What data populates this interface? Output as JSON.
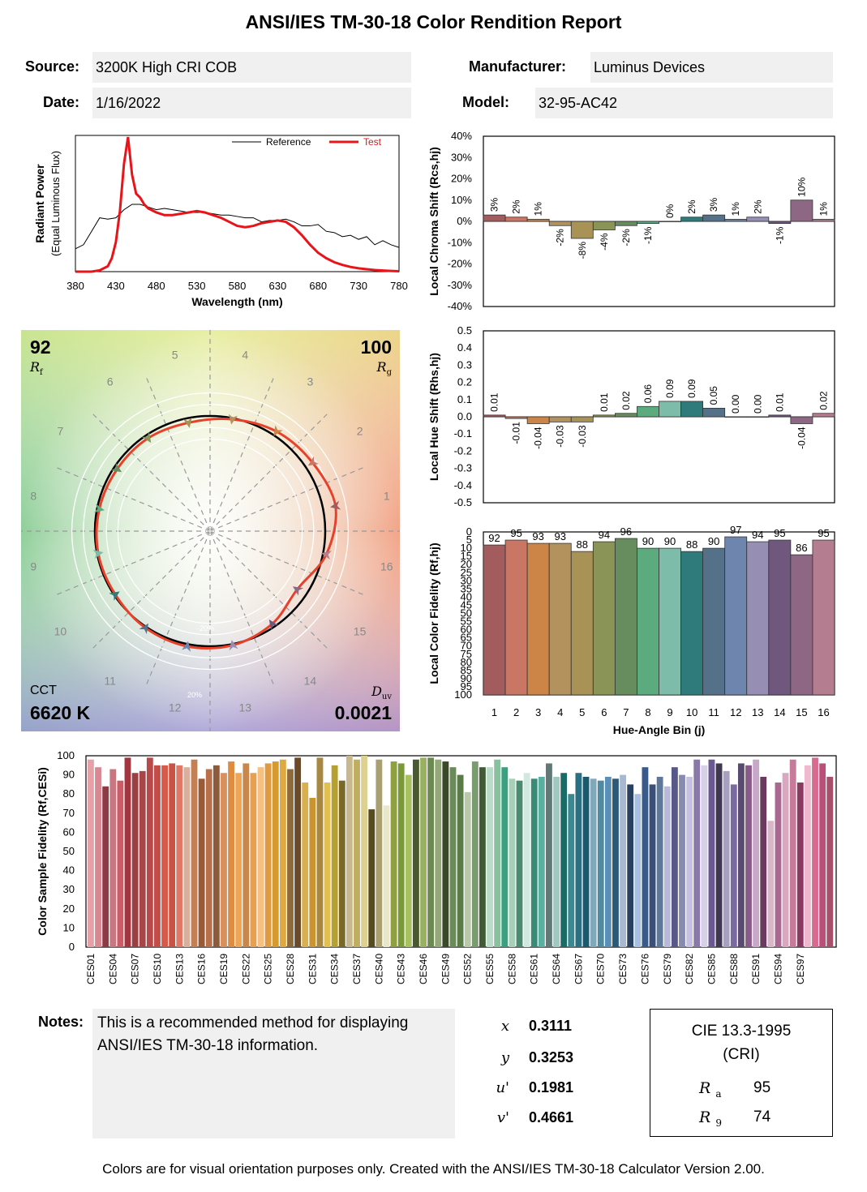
{
  "report": {
    "title": "ANSI/IES TM-30-18 Color Rendition Report",
    "source_label": "Source:",
    "source_value": "3200K High CRI COB",
    "date_label": "Date:",
    "date_value": "1/16/2022",
    "manufacturer_label": "Manufacturer:",
    "manufacturer_value": "Luminus Devices",
    "model_label": "Model:",
    "model_value": "32-95-AC42",
    "notes_label": "Notes:",
    "notes_text": "This is a recommended method for displaying ANSI/IES TM-30-18 information.",
    "footer": "Colors are for visual orientation purposes only. Created with the ANSI/IES TM-30-18 Calculator Version 2.00."
  },
  "chromaticity": {
    "x_label": "x",
    "x_value": "0.3111",
    "y_label": "y",
    "y_value": "0.3253",
    "u_label": "u'",
    "u_value": "0.1981",
    "v_label": "v'",
    "v_value": "0.4661"
  },
  "cri": {
    "title_line1": "CIE 13.3-1995",
    "title_line2": "(CRI)",
    "ra_label": "R",
    "ra_sub": "a",
    "ra_value": "95",
    "r9_label": "R",
    "r9_sub": "9",
    "r9_value": "74"
  },
  "vector_graphic": {
    "rf_value": "92",
    "rf_label": "R",
    "rf_sub": "f",
    "rg_value": "100",
    "rg_label": "R",
    "rg_sub": "g",
    "cct_label": "CCT",
    "cct_value": "6620 K",
    "duv_label": "D",
    "duv_sub": "uv",
    "duv_value": "0.0021",
    "ring_labels": [
      "-20%",
      "20%"
    ],
    "bin_numbers": [
      "1",
      "2",
      "3",
      "4",
      "5",
      "6",
      "7",
      "8",
      "9",
      "10",
      "11",
      "12",
      "13",
      "14",
      "15",
      "16"
    ],
    "test_radii": [
      1.11,
      1.07,
      1.04,
      0.99,
      0.96,
      0.97,
      0.97,
      0.98,
      0.99,
      0.99,
      1.01,
      1.02,
      1.01,
      0.97,
      0.91,
      1.03
    ]
  },
  "colors": {
    "test_line": "#e8412b",
    "bins": [
      "#a35c5e",
      "#c97764",
      "#cc8547",
      "#b3925d",
      "#a89256",
      "#8a9456",
      "#678c5e",
      "#5bab7e",
      "#7cbca8",
      "#2f7a7b",
      "#557089",
      "#6e86ad",
      "#978fb3",
      "#6f577e",
      "#8e6785",
      "#b57d90"
    ]
  },
  "chart_data": [
    {
      "id": "spd",
      "type": "line",
      "xlabel": "Wavelength (nm)",
      "ylabel": "Radiant Power",
      "ylabel2": "(Equal Luminous Flux)",
      "xlim": [
        380,
        780
      ],
      "xticks": [
        "380",
        "430",
        "480",
        "530",
        "580",
        "630",
        "680",
        "730",
        "780"
      ],
      "legend": [
        "Reference",
        "Test"
      ],
      "series": [
        {
          "name": "Reference",
          "x": [
            380,
            390,
            400,
            410,
            420,
            430,
            440,
            450,
            460,
            470,
            480,
            490,
            500,
            510,
            520,
            530,
            540,
            550,
            560,
            570,
            580,
            590,
            600,
            610,
            620,
            630,
            640,
            650,
            660,
            670,
            680,
            690,
            700,
            710,
            720,
            730,
            740,
            750,
            760,
            770,
            780
          ],
          "y": [
            0.17,
            0.2,
            0.3,
            0.4,
            0.39,
            0.4,
            0.46,
            0.5,
            0.5,
            0.48,
            0.46,
            0.47,
            0.46,
            0.45,
            0.44,
            0.44,
            0.44,
            0.43,
            0.42,
            0.42,
            0.41,
            0.4,
            0.4,
            0.37,
            0.38,
            0.38,
            0.39,
            0.37,
            0.34,
            0.34,
            0.35,
            0.3,
            0.29,
            0.26,
            0.27,
            0.24,
            0.26,
            0.2,
            0.23,
            0.2,
            0.18
          ]
        },
        {
          "name": "Test",
          "x": [
            380,
            400,
            410,
            420,
            425,
            430,
            435,
            440,
            445,
            450,
            455,
            460,
            465,
            470,
            480,
            490,
            500,
            510,
            520,
            530,
            540,
            550,
            560,
            570,
            580,
            590,
            600,
            610,
            620,
            630,
            640,
            650,
            660,
            670,
            680,
            690,
            700,
            710,
            720,
            730,
            740,
            750,
            760,
            770,
            780
          ],
          "y": [
            0.0,
            0.0,
            0.01,
            0.04,
            0.1,
            0.22,
            0.45,
            0.8,
            1.0,
            0.72,
            0.58,
            0.55,
            0.5,
            0.47,
            0.44,
            0.42,
            0.42,
            0.43,
            0.44,
            0.45,
            0.44,
            0.42,
            0.4,
            0.37,
            0.34,
            0.33,
            0.34,
            0.36,
            0.37,
            0.38,
            0.37,
            0.33,
            0.27,
            0.2,
            0.14,
            0.1,
            0.07,
            0.05,
            0.035,
            0.025,
            0.018,
            0.012,
            0.008,
            0.005,
            0.003
          ]
        }
      ]
    },
    {
      "id": "chroma-shift",
      "type": "bar",
      "ylabel": "Local Chroma Shift (Rcs,hj)",
      "ylim": [
        -0.4,
        0.4
      ],
      "yticks": [
        "40%",
        "30%",
        "20%",
        "10%",
        "0%",
        "-10%",
        "-20%",
        "-30%",
        "-40%"
      ],
      "categories": [
        "1",
        "2",
        "3",
        "4",
        "5",
        "6",
        "7",
        "8",
        "9",
        "10",
        "11",
        "12",
        "13",
        "14",
        "15",
        "16"
      ],
      "values": [
        0.03,
        0.02,
        0.01,
        -0.02,
        -0.08,
        -0.04,
        -0.02,
        -0.01,
        0.0,
        0.02,
        0.03,
        0.01,
        0.02,
        -0.01,
        0.1,
        0.01
      ],
      "labels": [
        "3%",
        "2%",
        "1%",
        "-2%",
        "-8%",
        "-4%",
        "-2%",
        "-1%",
        "0%",
        "2%",
        "3%",
        "1%",
        "2%",
        "-1%",
        "10%",
        "1%"
      ]
    },
    {
      "id": "hue-shift",
      "type": "bar",
      "ylabel": "Local Hue Shift (Rhs,hj)",
      "ylim": [
        -0.5,
        0.5
      ],
      "yticks": [
        "0.5",
        "0.4",
        "0.3",
        "0.2",
        "0.1",
        "0.0",
        "-0.1",
        "-0.2",
        "-0.3",
        "-0.4",
        "-0.5"
      ],
      "categories": [
        "1",
        "2",
        "3",
        "4",
        "5",
        "6",
        "7",
        "8",
        "9",
        "10",
        "11",
        "12",
        "13",
        "14",
        "15",
        "16"
      ],
      "values": [
        0.01,
        -0.01,
        -0.04,
        -0.03,
        -0.03,
        0.01,
        0.02,
        0.06,
        0.09,
        0.09,
        0.05,
        0.0,
        0.0,
        0.01,
        -0.04,
        0.02
      ],
      "labels": [
        "0.01",
        "-0.01",
        "-0.04",
        "-0.03",
        "-0.03",
        "0.01",
        "0.02",
        "0.06",
        "0.09",
        "0.09",
        "0.05",
        "0.00",
        "0.00",
        "0.01",
        "-0.04",
        "0.02"
      ]
    },
    {
      "id": "local-fidelity",
      "type": "bar",
      "ylabel": "Local Color Fidelity (Rf,hj)",
      "xlabel": "Hue-Angle Bin (j)",
      "ylim": [
        0,
        100
      ],
      "yticks": [
        "0",
        "5",
        "10",
        "15",
        "20",
        "25",
        "30",
        "35",
        "40",
        "45",
        "50",
        "55",
        "60",
        "65",
        "70",
        "75",
        "80",
        "85",
        "90",
        "95",
        "100"
      ],
      "categories": [
        "1",
        "2",
        "3",
        "4",
        "5",
        "6",
        "7",
        "8",
        "9",
        "10",
        "11",
        "12",
        "13",
        "14",
        "15",
        "16"
      ],
      "values": [
        92,
        95,
        93,
        93,
        88,
        94,
        96,
        90,
        90,
        88,
        90,
        97,
        94,
        95,
        86,
        95
      ]
    },
    {
      "id": "ces-fidelity",
      "type": "bar",
      "ylabel": "Color Sample Fidelity (Rf,CESi)",
      "ylim": [
        0,
        100
      ],
      "yticks": [
        "0",
        "10",
        "20",
        "30",
        "40",
        "50",
        "60",
        "70",
        "80",
        "90",
        "100"
      ],
      "tick_labels": [
        "CES01",
        "CES04",
        "CES07",
        "CES10",
        "CES13",
        "CES16",
        "CES19",
        "CES22",
        "CES25",
        "CES28",
        "CES31",
        "CES34",
        "CES37",
        "CES40",
        "CES43",
        "CES46",
        "CES49",
        "CES52",
        "CES55",
        "CES58",
        "CES61",
        "CES64",
        "CES67",
        "CES70",
        "CES73",
        "CES76",
        "CES79",
        "CES82",
        "CES85",
        "CES88",
        "CES91",
        "CES94",
        "CES97"
      ],
      "values": [
        98,
        94,
        84,
        93,
        87,
        99,
        91,
        92,
        99,
        95,
        95,
        96,
        95,
        94,
        98,
        88,
        93,
        95,
        91,
        97,
        91,
        96,
        91,
        94,
        96,
        97,
        98,
        93,
        99,
        86,
        78,
        99,
        86,
        95,
        87,
        100,
        98,
        100,
        72,
        98,
        74,
        97,
        96,
        90,
        98,
        99,
        99,
        98,
        97,
        94,
        90,
        81,
        97,
        94,
        94,
        98,
        94,
        88,
        87,
        91,
        88,
        89,
        96,
        89,
        91,
        80,
        91,
        89,
        88,
        87,
        89,
        88,
        90,
        85,
        80,
        94,
        85,
        89,
        84,
        94,
        90,
        89,
        98,
        95,
        98,
        96,
        92,
        85,
        96,
        95,
        98,
        89,
        66,
        86,
        91,
        98,
        86,
        95,
        99,
        96,
        89
      ],
      "bar_colors": [
        "#e8a0a8",
        "#d98790",
        "#8e3a45",
        "#c87780",
        "#cd5b66",
        "#a13540",
        "#9b3f43",
        "#a84549",
        "#b8484a",
        "#c24c48",
        "#d8584a",
        "#c85344",
        "#e07868",
        "#d8b09c",
        "#c38055",
        "#9a5a38",
        "#b8704a",
        "#8e5a3c",
        "#d8905c",
        "#e08c40",
        "#f0a555",
        "#c8874c",
        "#e8a050",
        "#f5c080",
        "#e09a40",
        "#d59a30",
        "#e0a940",
        "#8c6a3a",
        "#6a4a28",
        "#d8b050",
        "#c89530",
        "#a88840",
        "#e0c050",
        "#b8a030",
        "#7a6828",
        "#c8b890",
        "#bfae60",
        "#ddd090",
        "#564a20",
        "#a8a070",
        "#e8e8c8",
        "#8ea040",
        "#7a9a3a",
        "#a8c060",
        "#4a5a30",
        "#98b060",
        "#6a8a50",
        "#94a878",
        "#3a4a28",
        "#6a8a58",
        "#5a7a48",
        "#b8c8a8",
        "#7a9a70",
        "#405a38",
        "#b8dcc8",
        "#88c0a0",
        "#3aa080",
        "#a8d0b8",
        "#4a8a70",
        "#d0e8e0",
        "#3a8a78",
        "#5ab0a0",
        "#607878",
        "#a0c8c0",
        "#1a6a68",
        "#3a8890",
        "#2a7080",
        "#1a5a70",
        "#80a8b8",
        "#508aa0",
        "#5a90b8",
        "#2a5a78",
        "#a8b8d0",
        "#2a4060",
        "#a8c0e0",
        "#3a5a8a",
        "#3a5078",
        "#607898",
        "#b8b8d8",
        "#585888",
        "#888ab0",
        "#c8c0e0",
        "#8a78a8",
        "#d8d0e8",
        "#6a5890",
        "#403850",
        "#a8a0c0",
        "#7a6aa0",
        "#584a70",
        "#8a5a88",
        "#c8a8c8",
        "#6a3a60",
        "#d8b8c8",
        "#a86890",
        "#d8a8c0",
        "#c87a9a",
        "#8a3a60",
        "#f0b8cc",
        "#d86a90",
        "#b85078",
        "#a8506a"
      ]
    }
  ]
}
